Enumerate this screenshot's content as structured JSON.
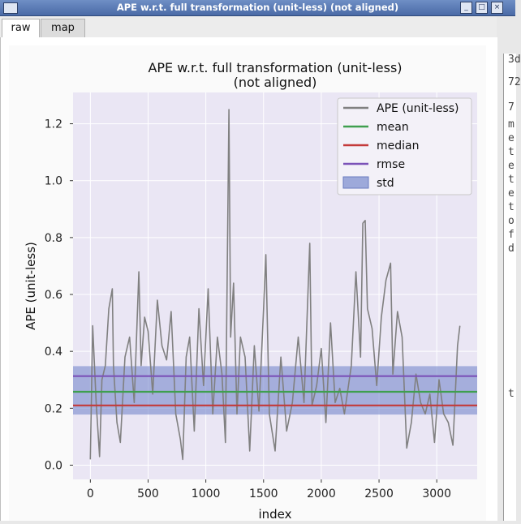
{
  "window": {
    "title": "APE w.r.t. full transformation (unit-less) (not aligned)",
    "buttons": [
      "_",
      "□",
      "×"
    ]
  },
  "tabs": [
    {
      "label": "raw",
      "active": true
    },
    {
      "label": "map",
      "active": false
    }
  ],
  "side_text": {
    "top": [
      "3d",
      "72",
      "7"
    ],
    "letters": [
      "m",
      "e",
      "t",
      "e",
      "t",
      "e",
      "t",
      "o",
      "f",
      "d"
    ],
    "bottom": "t"
  },
  "chart_data": {
    "type": "line",
    "title": "APE w.r.t. full transformation (unit-less)",
    "subtitle": "(not aligned)",
    "xlabel": "index",
    "ylabel": "APE (unit-less)",
    "xlim": [
      -150,
      3350
    ],
    "ylim": [
      -0.05,
      1.31
    ],
    "xticks": [
      0,
      500,
      1000,
      1500,
      2000,
      2500,
      3000
    ],
    "yticks": [
      0.0,
      0.2,
      0.4,
      0.6,
      0.8,
      1.0,
      1.2
    ],
    "ytick_labels": [
      "0.0",
      "0.2",
      "0.4",
      "0.6",
      "0.8",
      "1.0",
      "1.2"
    ],
    "grid": true,
    "legend_position": "top-right",
    "series": [
      {
        "name": "APE (unit-less)",
        "color": "#808080",
        "x": [
          0,
          20,
          50,
          80,
          100,
          130,
          160,
          190,
          200,
          230,
          260,
          300,
          340,
          380,
          420,
          440,
          470,
          500,
          540,
          580,
          620,
          660,
          700,
          740,
          780,
          800,
          830,
          860,
          900,
          940,
          980,
          1020,
          1060,
          1100,
          1140,
          1170,
          1200,
          1215,
          1240,
          1270,
          1300,
          1340,
          1380,
          1420,
          1460,
          1500,
          1520,
          1550,
          1600,
          1650,
          1700,
          1750,
          1800,
          1850,
          1900,
          1920,
          1960,
          2000,
          2040,
          2080,
          2120,
          2160,
          2200,
          2260,
          2300,
          2340,
          2360,
          2380,
          2400,
          2440,
          2480,
          2520,
          2560,
          2600,
          2620,
          2660,
          2700,
          2740,
          2780,
          2820,
          2860,
          2900,
          2940,
          2980,
          3020,
          3060,
          3100,
          3140,
          3180,
          3200
        ],
        "values": [
          0.02,
          0.49,
          0.22,
          0.03,
          0.3,
          0.35,
          0.55,
          0.62,
          0.35,
          0.15,
          0.08,
          0.38,
          0.45,
          0.22,
          0.68,
          0.35,
          0.52,
          0.47,
          0.25,
          0.58,
          0.42,
          0.37,
          0.54,
          0.18,
          0.09,
          0.02,
          0.38,
          0.45,
          0.12,
          0.55,
          0.28,
          0.62,
          0.18,
          0.45,
          0.32,
          0.08,
          1.25,
          0.45,
          0.64,
          0.18,
          0.45,
          0.38,
          0.05,
          0.42,
          0.19,
          0.55,
          0.74,
          0.18,
          0.05,
          0.38,
          0.12,
          0.22,
          0.45,
          0.22,
          0.78,
          0.21,
          0.28,
          0.41,
          0.15,
          0.5,
          0.22,
          0.27,
          0.18,
          0.35,
          0.68,
          0.38,
          0.85,
          0.86,
          0.55,
          0.48,
          0.28,
          0.52,
          0.65,
          0.71,
          0.32,
          0.54,
          0.45,
          0.06,
          0.15,
          0.32,
          0.22,
          0.18,
          0.25,
          0.08,
          0.3,
          0.18,
          0.15,
          0.07,
          0.42,
          0.49
        ]
      },
      {
        "name": "mean",
        "color": "#3f9f4f",
        "value": 0.258
      },
      {
        "name": "median",
        "color": "#c43a3a",
        "value": 0.21
      },
      {
        "name": "rmse",
        "color": "#7b52b8",
        "value": 0.313
      },
      {
        "name": "std",
        "color": "#8090d0",
        "range": [
          0.178,
          0.348
        ]
      }
    ]
  }
}
